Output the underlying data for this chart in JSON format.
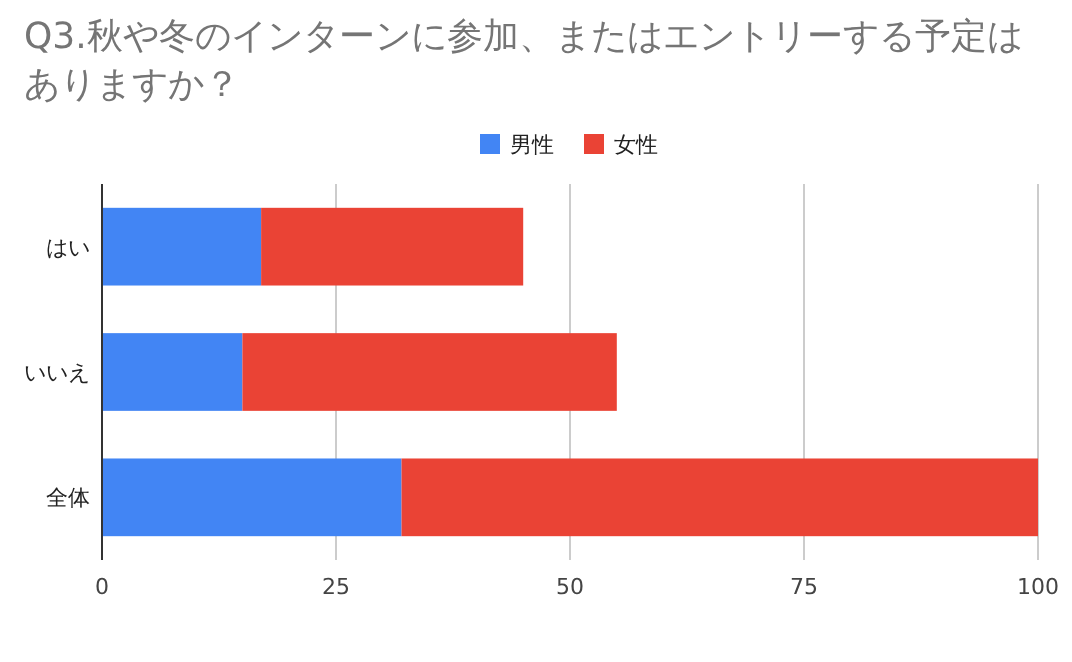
{
  "chart_data": {
    "type": "bar",
    "orientation": "horizontal",
    "stacked": true,
    "title": "Q3.秋や冬のインターンに参加、またはエントリーする予定はありますか？",
    "categories": [
      "はい",
      "いいえ",
      "全体"
    ],
    "series": [
      {
        "name": "男性",
        "color": "#4285f4",
        "values": [
          17,
          15,
          32
        ]
      },
      {
        "name": "女性",
        "color": "#ea4335",
        "values": [
          28,
          40,
          68
        ]
      }
    ],
    "xlim": [
      0,
      100
    ],
    "xticks": [
      0,
      25,
      50,
      75,
      100
    ],
    "grid": "x",
    "legend": "top"
  }
}
